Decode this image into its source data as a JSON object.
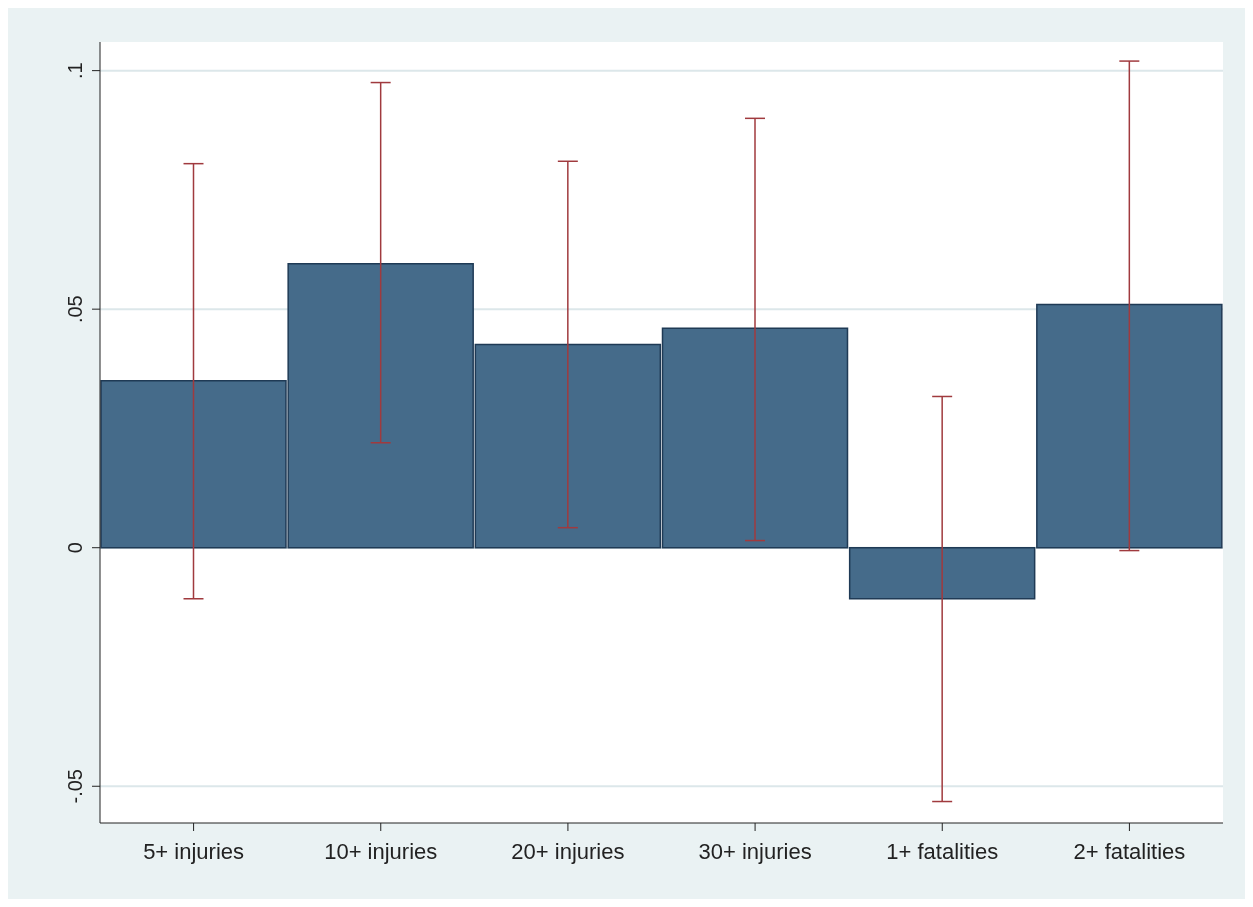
{
  "chart_data": {
    "type": "bar",
    "categories": [
      "5+ injuries",
      "10+ injuries",
      "20+ injuries",
      "30+ injuries",
      "1+ fatalities",
      "2+ fatalities"
    ],
    "values": [
      0.035,
      0.0595,
      0.0426,
      0.046,
      -0.0107,
      0.051
    ],
    "color": "#456b8a",
    "errors": [
      [
        -0.0107,
        0.0805
      ],
      [
        0.022,
        0.0975
      ],
      [
        0.0042,
        0.081
      ],
      [
        0.0015,
        0.09
      ],
      [
        -0.0532,
        0.0317
      ],
      [
        -0.0006,
        0.102
      ]
    ],
    "ylim": [
      -0.0577,
      0.106
    ],
    "yticks": [
      {
        "value": -0.05,
        "label": "-.05"
      },
      {
        "value": 0,
        "label": "0"
      },
      {
        "value": 0.05,
        "label": ".05"
      },
      {
        "value": 0.1,
        "label": ".1"
      }
    ],
    "grid": "y"
  }
}
